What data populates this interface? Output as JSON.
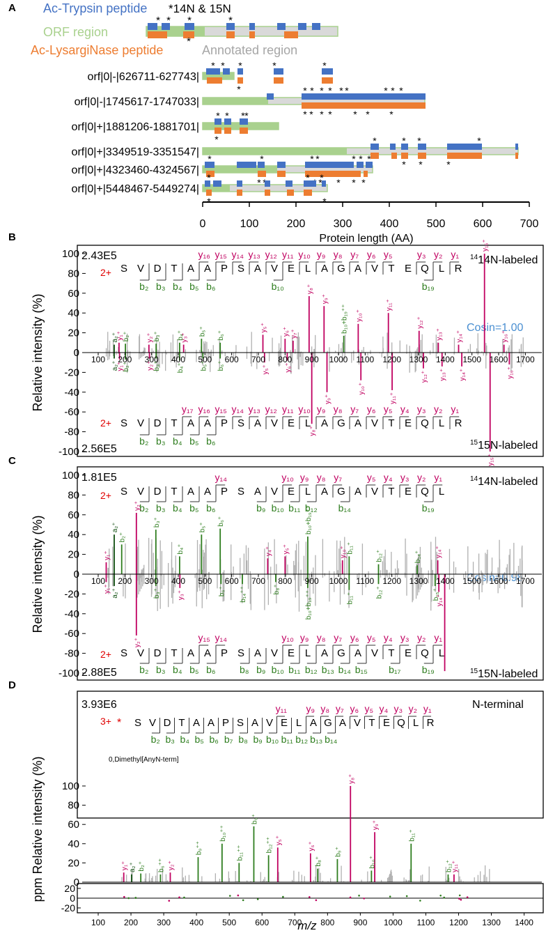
{
  "figure": {
    "panel_letters": [
      "A",
      "B",
      "C",
      "D"
    ],
    "colors": {
      "trypsin": "#4472c4",
      "lysarginase": "#ed7d31",
      "orf": "#a9d18e",
      "annotated": "#d9d9d9",
      "y_ion": "#c00060",
      "b_ion": "#2e7d1e",
      "b_ion_dark": "#0e4d0e",
      "noise": "#b0b0b0",
      "cosine": "#4a8fd1",
      "charge": "#e00000"
    }
  },
  "panel_a": {
    "legend": {
      "trypsin": "Ac-Trypsin peptide",
      "n14": "*14N & 15N",
      "orf": "ORF region",
      "lysarginase": "Ac-LysargiNase peptide",
      "annotated": "Annotated region"
    },
    "rows": [
      {
        "label": "orf|0|-|626711-627743|"
      },
      {
        "label": "orf|0|-|1745617-1747033|"
      },
      {
        "label": "orf|0|+|1881206-1881701|"
      },
      {
        "label": "orf|0|+|3349519-3351547|"
      },
      {
        "label": "orf|0|+|4323460-4324567|"
      },
      {
        "label": "orf|0|+|5448467-5449274|"
      }
    ],
    "axis": {
      "xlabel": "Protein length (AA)",
      "ticks": [
        "0",
        "100",
        "200",
        "300",
        "400",
        "500",
        "600",
        "700"
      ],
      "range": [
        0,
        700
      ]
    }
  },
  "spectra": {
    "ylabel": "Relative intensity (%)",
    "xlabel": "m/z",
    "cosine_b": "Cosin=1.00",
    "cosine_c": "Cosin=0.98",
    "label_14n": "14N-labeled",
    "label_15n": "15N-labeled",
    "n_terminal": "N-terminal",
    "modification": "0,Dimethyl[AnyN-term]",
    "ppm_label": "ppm",
    "intensity_b_top": "2.43E5",
    "intensity_b_bottom": "2.56E5",
    "intensity_c_top": "1.81E5",
    "intensity_c_bottom": "2.88E5",
    "intensity_d": "3.93E6",
    "charge_2": "2+",
    "charge_3": "3+",
    "star": "*",
    "sequence_b": [
      "S",
      "V",
      "D",
      "T",
      "A",
      "A",
      "P",
      "S",
      "A",
      "V",
      "E",
      "L",
      "A",
      "G",
      "A",
      "V",
      "T",
      "E",
      "Q",
      "L",
      "R"
    ],
    "sequence_c": [
      "S",
      "V",
      "D",
      "T",
      "A",
      "A",
      "P",
      "S",
      "A",
      "V",
      "E",
      "L",
      "A",
      "G",
      "A",
      "V",
      "T",
      "E",
      "Q",
      "L"
    ],
    "yticks": [
      "100",
      "80",
      "60",
      "40",
      "20",
      "0",
      "-20",
      "-40",
      "-60",
      "-80",
      "-100"
    ],
    "yticks_d": [
      "100",
      "80",
      "60",
      "40",
      "20",
      "0"
    ],
    "ppm_ticks": [
      "20",
      "0",
      "-20"
    ],
    "xticks_bc": [
      "100",
      "200",
      "300",
      "400",
      "500",
      "600",
      "700",
      "800",
      "900",
      "1000",
      "1100",
      "1200",
      "1300",
      "1400",
      "1500",
      "1600",
      "1700"
    ],
    "xticks_d": [
      "100",
      "200",
      "300",
      "400",
      "500",
      "600",
      "700",
      "800",
      "900",
      "1000",
      "1100",
      "1200",
      "1300",
      "1400"
    ]
  }
}
